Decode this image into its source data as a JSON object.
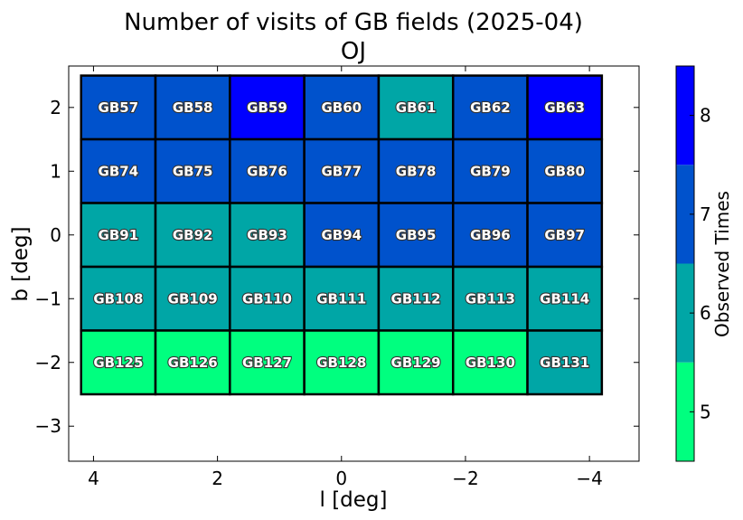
{
  "chart_data": {
    "type": "heatmap",
    "title": "Number of visits of GB fields (2025-04)",
    "subtitle": "OJ",
    "xlabel": "l [deg]",
    "ylabel": "b [deg]",
    "x_ticks": [
      "4",
      "2",
      "0",
      "−2",
      "−4"
    ],
    "y_ticks": [
      "2",
      "1",
      "0",
      "−1",
      "−2",
      "−3"
    ],
    "x_tick_values": [
      4,
      2,
      0,
      -2,
      -4
    ],
    "y_tick_values": [
      2,
      1,
      0,
      -1,
      -2,
      -3
    ],
    "xlim": [
      4.4,
      -4.8
    ],
    "ylim": [
      -3.55,
      2.65
    ],
    "x_reversed": true,
    "columns_l_centers": [
      3.6,
      2.4,
      1.2,
      0.0,
      -1.2,
      -2.4,
      -3.6
    ],
    "rows_b_centers": [
      2.0,
      1.0,
      0.0,
      -1.0,
      -2.0
    ],
    "cell_width_deg": 1.2,
    "cell_height_deg": 1.0,
    "rows": [
      {
        "fields": [
          "GB57",
          "GB58",
          "GB59",
          "GB60",
          "GB61",
          "GB62",
          "GB63"
        ],
        "visits": [
          7,
          7,
          8,
          7,
          6,
          7,
          8
        ]
      },
      {
        "fields": [
          "GB74",
          "GB75",
          "GB76",
          "GB77",
          "GB78",
          "GB79",
          "GB80"
        ],
        "visits": [
          7,
          7,
          7,
          7,
          7,
          7,
          7
        ]
      },
      {
        "fields": [
          "GB91",
          "GB92",
          "GB93",
          "GB94",
          "GB95",
          "GB96",
          "GB97"
        ],
        "visits": [
          6,
          6,
          6,
          7,
          7,
          7,
          7
        ]
      },
      {
        "fields": [
          "GB108",
          "GB109",
          "GB110",
          "GB111",
          "GB112",
          "GB113",
          "GB114"
        ],
        "visits": [
          6,
          6,
          6,
          6,
          6,
          6,
          6
        ]
      },
      {
        "fields": [
          "GB125",
          "GB126",
          "GB127",
          "GB128",
          "GB129",
          "GB130",
          "GB131"
        ],
        "visits": [
          5,
          5,
          5,
          5,
          5,
          5,
          6
        ]
      }
    ],
    "colorbar": {
      "label": "Observed Times",
      "range": [
        4.5,
        8.5
      ],
      "ticks": [
        "5",
        "6",
        "7",
        "8"
      ],
      "tick_values": [
        5,
        6,
        7,
        8
      ],
      "colors": {
        "5": "#00ff7f",
        "6": "#00a6a6",
        "7": "#0052cc",
        "8": "#0000ff"
      }
    },
    "grid": false
  }
}
